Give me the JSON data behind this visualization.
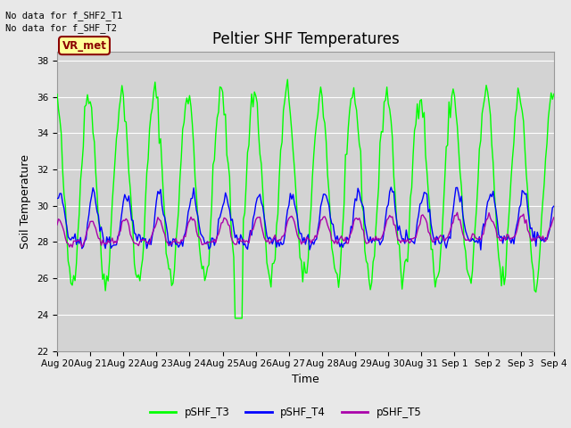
{
  "title": "Peltier SHF Temperatures",
  "xlabel": "Time",
  "ylabel": "Soil Temperature",
  "no_data_text": [
    "No data for f_SHF2_T1",
    "No data for f_SHF_T2"
  ],
  "vr_met_label": "VR_met",
  "ylim": [
    22,
    38.5
  ],
  "yticks": [
    22,
    24,
    26,
    28,
    30,
    32,
    34,
    36,
    38
  ],
  "xtick_labels": [
    "Aug 20",
    "Aug 21",
    "Aug 22",
    "Aug 23",
    "Aug 24",
    "Aug 25",
    "Aug 26",
    "Aug 27",
    "Aug 28",
    "Aug 29",
    "Aug 30",
    "Aug 31",
    "Sep 1",
    "Sep 2",
    "Sep 3",
    "Sep 4"
  ],
  "legend_entries": [
    "pSHF_T3",
    "pSHF_T4",
    "pSHF_T5"
  ],
  "legend_colors": [
    "#00FF00",
    "#0000FF",
    "#AA00AA"
  ],
  "line_colors": [
    "#00FF00",
    "#0000FF",
    "#AA00AA"
  ],
  "background_color": "#E8E8E8",
  "axes_bg_color": "#D3D3D3",
  "grid_color": "#FFFFFF",
  "title_fontsize": 12,
  "label_fontsize": 9,
  "tick_fontsize": 7.5,
  "vr_met_bg": "#FFFF99",
  "vr_met_border": "#8B0000",
  "n_days": 15
}
